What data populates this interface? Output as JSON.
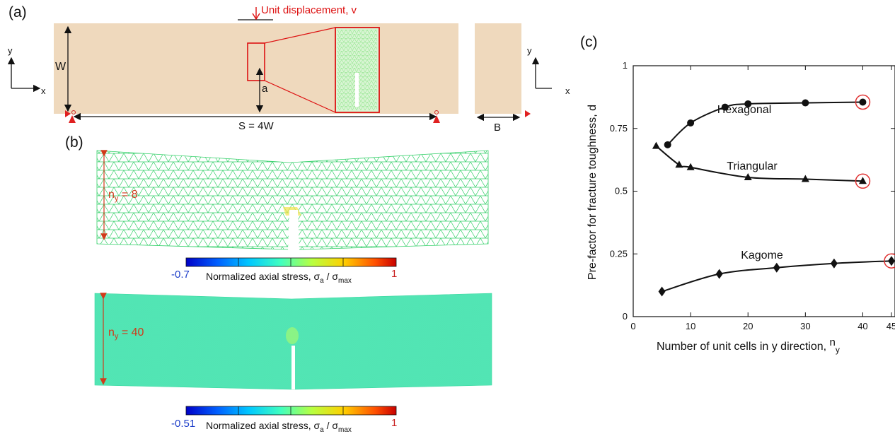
{
  "panel_a": {
    "letter": "(a)",
    "load_label": "Unit displacement, v",
    "height_label": "W",
    "crack_label": "a",
    "span_label": "S = 4W",
    "thickness_label": "B",
    "axis_y": "y",
    "axis_x": "x"
  },
  "panel_b": {
    "letter": "(b)",
    "top_ny": "n",
    "top_ny_sub": "y",
    "top_ny_value": " = 8",
    "bottom_ny": "n",
    "bottom_ny_sub": "y",
    "bottom_ny_value": " = 40",
    "colorbar1": {
      "min": "-0.7",
      "max": "1",
      "label_main": "Normalized axial stress, σ",
      "label_sub1": "a",
      "label_mid": " / σ",
      "label_sub2": "max"
    },
    "colorbar2": {
      "min": "-0.51",
      "max": "1",
      "label_main": "Normalized axial stress, σ",
      "label_sub1": "a",
      "label_mid": " / σ",
      "label_sub2": "max"
    },
    "colormap": [
      "#0000c8",
      "#0070ff",
      "#00d0ff",
      "#50ffb0",
      "#b8ff40",
      "#ffd000",
      "#ff6000",
      "#c80000"
    ]
  },
  "panel_c": {
    "letter": "(c)"
  },
  "chart_data": {
    "type": "line",
    "ylabel": "Pre-factor for fracture toughness, d",
    "xlabel": "Number of unit cells in y direction, ",
    "xlabel_sub": "n",
    "xlabel_subsub": "y",
    "xlim": [
      0,
      45
    ],
    "ylim": [
      0,
      1
    ],
    "xticks": [
      "0",
      "10",
      "20",
      "30",
      "40",
      "45"
    ],
    "xtick_values": [
      0,
      10,
      20,
      30,
      40,
      45
    ],
    "yticks": [
      "0",
      "0.25",
      "0.5",
      "0.75",
      "1"
    ],
    "ytick_values": [
      0,
      0.25,
      0.5,
      0.75,
      1
    ],
    "series": [
      {
        "name": "Hexagonal",
        "marker": "circle",
        "x": [
          6,
          10,
          16,
          20,
          30,
          40
        ],
        "y": [
          0.685,
          0.772,
          0.835,
          0.848,
          0.852,
          0.855
        ],
        "highlight_index": 5
      },
      {
        "name": "Triangular",
        "marker": "triangle",
        "x": [
          4,
          8,
          10,
          20,
          30,
          40
        ],
        "y": [
          0.68,
          0.605,
          0.595,
          0.555,
          0.548,
          0.54
        ],
        "highlight_index": 5
      },
      {
        "name": "Kagome",
        "marker": "diamond",
        "x": [
          5,
          15,
          25,
          35,
          45
        ],
        "y": [
          0.1,
          0.17,
          0.195,
          0.212,
          0.222
        ],
        "highlight_index": 4
      }
    ]
  }
}
